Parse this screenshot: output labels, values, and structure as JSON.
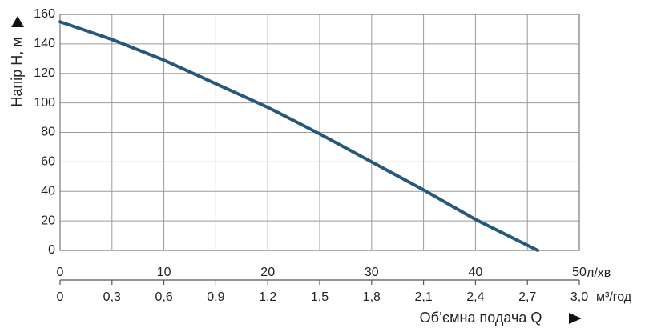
{
  "chart_data": {
    "type": "line",
    "y_label": "Напір H, м",
    "x_label": "Об’ємна подача Q",
    "x_unit": "л/хв",
    "x2_unit": "м³/год",
    "x": [
      0,
      5,
      10,
      15,
      20,
      25,
      30,
      35,
      40,
      46
    ],
    "series": [
      {
        "name": "H",
        "color": "#25587c",
        "values": [
          155,
          143,
          129,
          113,
          97,
          79,
          60,
          41,
          21,
          0
        ]
      }
    ],
    "xlim": [
      0,
      50
    ],
    "xticks": [
      0,
      10,
      20,
      30,
      40,
      50
    ],
    "x2lim": [
      0,
      3
    ],
    "x2ticks": [
      0,
      {
        "value": 0.3,
        "label": "0,3"
      },
      {
        "value": 0.6,
        "label": "0,6"
      },
      {
        "value": 0.9,
        "label": "0,9"
      },
      {
        "value": 1.2,
        "label": "1,2"
      },
      {
        "value": 1.5,
        "label": "1,5"
      },
      {
        "value": 1.8,
        "label": "1,8"
      },
      {
        "value": 2.1,
        "label": "2,1"
      },
      {
        "value": 2.4,
        "label": "2,4"
      },
      {
        "value": 2.7,
        "label": "2,7"
      },
      {
        "value": 3,
        "label": "3,0"
      }
    ],
    "ylim": [
      0,
      160
    ],
    "yticks": [
      0,
      20,
      40,
      60,
      80,
      100,
      120,
      140,
      160
    ],
    "grid": true
  }
}
